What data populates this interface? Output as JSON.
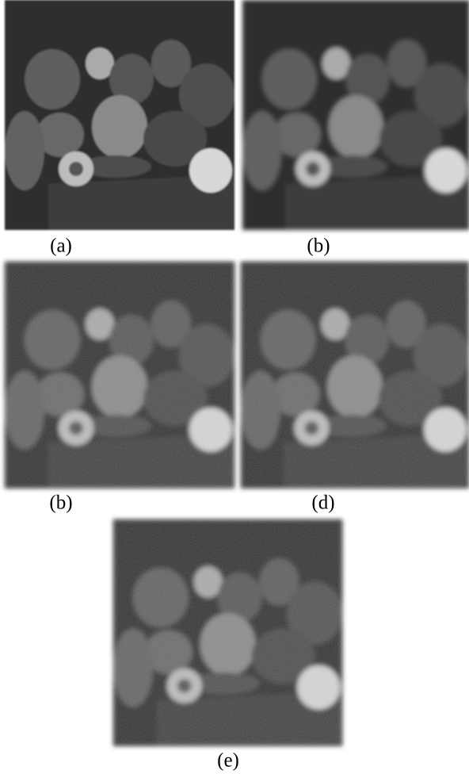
{
  "figure": {
    "panels": [
      {
        "caption": "(a)"
      },
      {
        "caption": "(b)"
      },
      {
        "caption": "(b)"
      },
      {
        "caption": "(d)"
      },
      {
        "caption": "(e)"
      }
    ]
  }
}
